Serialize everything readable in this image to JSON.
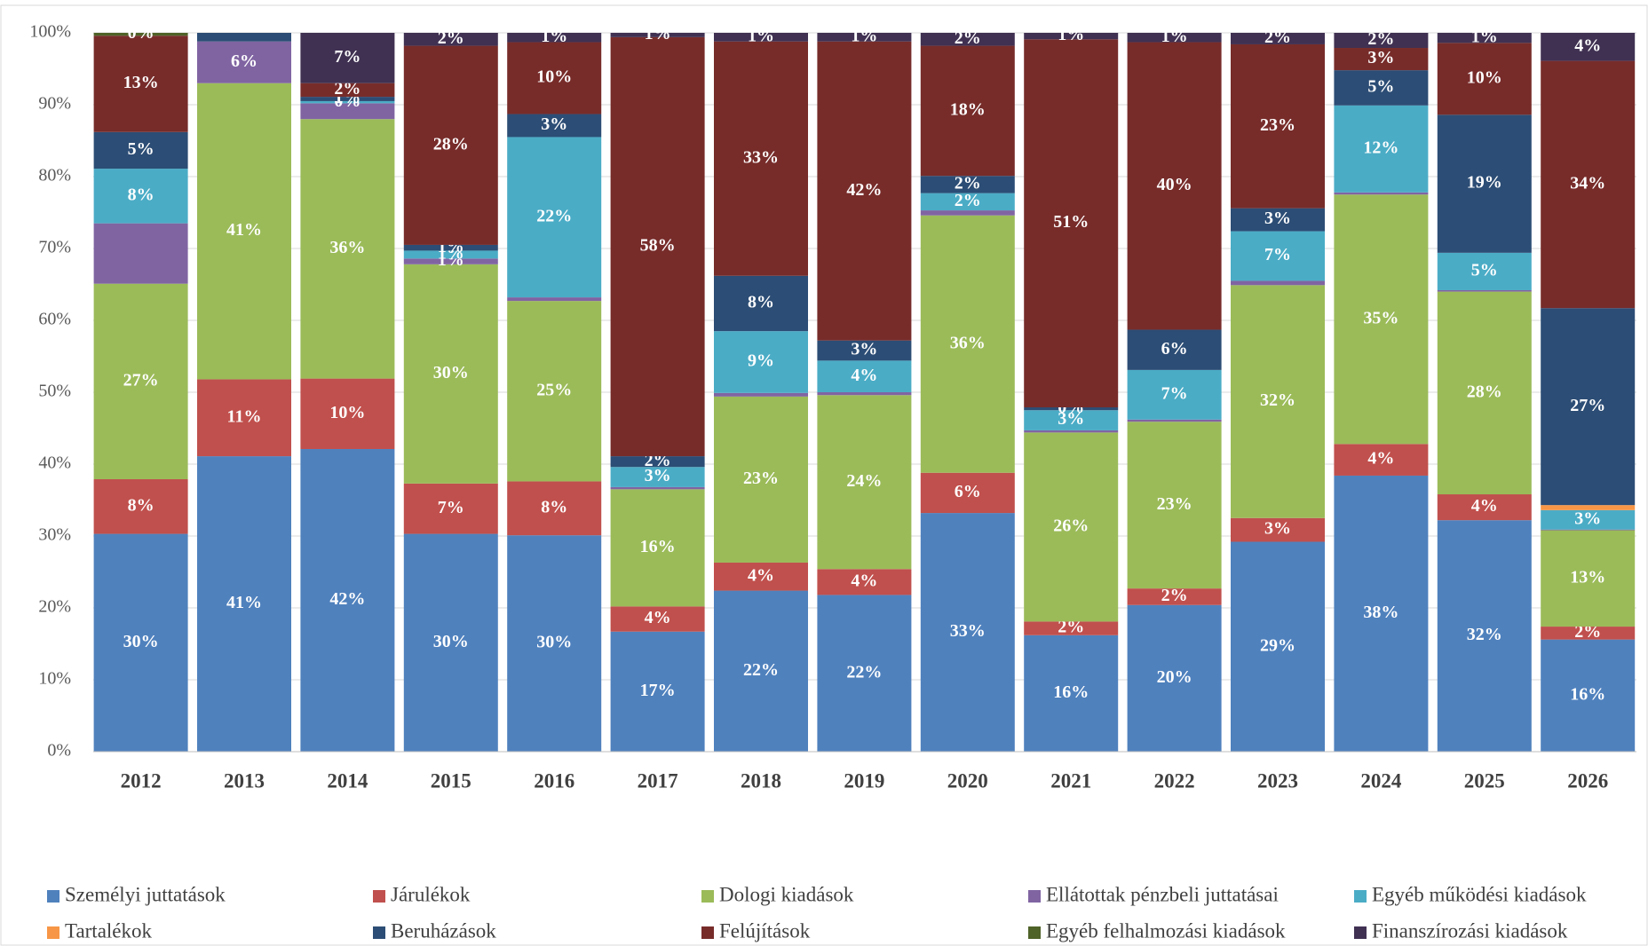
{
  "chart_data": {
    "type": "stacked_bar",
    "categories": [
      "2012",
      "2013",
      "2014",
      "2015",
      "2016",
      "2017",
      "2018",
      "2019",
      "2020",
      "2021",
      "2022",
      "2023",
      "2024",
      "2025",
      "2026"
    ],
    "ylim": [
      0,
      100
    ],
    "yticks": [
      {
        "value": 0,
        "label": "0%"
      },
      {
        "value": 10,
        "label": "10%"
      },
      {
        "value": 20,
        "label": "20%"
      },
      {
        "value": 30,
        "label": "30%"
      },
      {
        "value": 40,
        "label": "40%"
      },
      {
        "value": 50,
        "label": "50%"
      },
      {
        "value": 60,
        "label": "60%"
      },
      {
        "value": 70,
        "label": "70%"
      },
      {
        "value": 80,
        "label": "80%"
      },
      {
        "value": 90,
        "label": "90%"
      },
      {
        "value": 100,
        "label": "100%"
      }
    ],
    "grid": true,
    "series": [
      {
        "name": "Személyi juttatások",
        "color": "#4f81bd",
        "values": [
          30.3,
          41.1,
          42.1,
          30.3,
          30.1,
          16.7,
          22.4,
          21.8,
          33.2,
          16.2,
          20.4,
          29.2,
          38.4,
          32.2,
          15.6
        ],
        "value_labels": [
          "30%",
          "41%",
          "42%",
          "30%",
          "30%",
          "17%",
          "22%",
          "22%",
          "33%",
          "16%",
          "20%",
          "29%",
          "38%",
          "32%",
          "16%"
        ]
      },
      {
        "name": "Járulékok",
        "color": "#c0504d",
        "values": [
          7.6,
          10.7,
          9.8,
          7.0,
          7.5,
          3.5,
          3.9,
          3.6,
          5.6,
          1.9,
          2.3,
          3.3,
          4.4,
          3.6,
          1.8
        ],
        "value_labels": [
          "8%",
          "11%",
          "10%",
          "7%",
          "8%",
          "4%",
          "4%",
          "4%",
          "6%",
          "2%",
          "2%",
          "3%",
          "4%",
          "4%",
          "2%"
        ]
      },
      {
        "name": "Dologi kiadások",
        "color": "#9bbb59",
        "values": [
          27.2,
          41.2,
          36.1,
          30.5,
          25.1,
          16.3,
          23.1,
          24.2,
          35.8,
          26.3,
          23.2,
          32.4,
          34.7,
          28.2,
          13.4
        ],
        "value_labels": [
          "27%",
          "41%",
          "36%",
          "30%",
          "25%",
          "16%",
          "23%",
          "24%",
          "36%",
          "26%",
          "23%",
          "32%",
          "35%",
          "28%",
          "13%"
        ]
      },
      {
        "name": "Ellátottak pénzbeli juttatásai",
        "color": "#8064a2",
        "values": [
          8.4,
          5.8,
          2.2,
          0.8,
          0.5,
          0.3,
          0.5,
          0.4,
          0.7,
          0.3,
          0.3,
          0.6,
          0.3,
          0.2,
          0.1
        ],
        "value_labels": [
          null,
          "6%",
          null,
          "1%",
          null,
          null,
          null,
          null,
          null,
          null,
          null,
          null,
          null,
          null,
          null
        ]
      },
      {
        "name": "Egyéb működési kiadások",
        "color": "#4bacc6",
        "values": [
          7.6,
          0,
          0.3,
          1.1,
          22.3,
          2.8,
          8.6,
          4.4,
          2.4,
          2.8,
          6.9,
          6.9,
          12.1,
          5.2,
          2.7
        ],
        "value_labels": [
          "8%",
          null,
          "0%",
          "1%",
          "22%",
          "3%",
          "9%",
          "4%",
          "2%",
          "3%",
          "7%",
          "7%",
          "12%",
          "5%",
          "3%"
        ]
      },
      {
        "name": "Tartalékok",
        "color": "#f79646",
        "values": [
          0,
          0,
          0,
          0,
          0,
          0,
          0,
          0,
          0,
          0,
          0,
          0,
          0,
          0,
          0.7
        ],
        "value_labels": [
          null,
          null,
          null,
          null,
          null,
          null,
          null,
          null,
          null,
          null,
          null,
          null,
          null,
          null,
          null
        ]
      },
      {
        "name": "Beruházások",
        "color": "#2c4d75",
        "values": [
          5.1,
          1.2,
          0.6,
          0.8,
          3.2,
          1.5,
          7.7,
          2.8,
          2.4,
          0.4,
          5.6,
          3.2,
          4.9,
          19.2,
          27.4
        ],
        "value_labels": [
          "5%",
          null,
          "1%",
          "1%",
          "3%",
          "2%",
          "8%",
          "3%",
          "2%",
          "0%",
          "6%",
          "3%",
          "5%",
          "19%",
          "27%"
        ]
      },
      {
        "name": "Felújítások",
        "color": "#772c2a",
        "values": [
          13.4,
          0,
          1.9,
          27.7,
          10.0,
          58.3,
          32.6,
          41.6,
          18.1,
          51.2,
          40.0,
          22.8,
          3.1,
          10.0,
          34.4
        ],
        "value_labels": [
          "13%",
          null,
          "2%",
          "28%",
          "10%",
          "58%",
          "33%",
          "42%",
          "18%",
          "51%",
          "40%",
          "23%",
          "3%",
          "10%",
          "34%"
        ]
      },
      {
        "name": "Egyéb felhalmozási kiadások",
        "color": "#4f6228",
        "values": [
          0.4,
          0,
          0,
          0,
          0,
          0,
          0,
          0,
          0,
          0,
          0,
          0,
          0,
          0,
          0
        ],
        "value_labels": [
          "0%",
          null,
          null,
          null,
          null,
          null,
          null,
          null,
          null,
          null,
          null,
          null,
          null,
          null,
          null
        ]
      },
      {
        "name": "Finanszírozási kiadások",
        "color": "#403152",
        "values": [
          0,
          0,
          7.0,
          1.8,
          1.3,
          0.6,
          1.2,
          1.2,
          1.8,
          0.9,
          1.3,
          1.6,
          2.1,
          1.4,
          3.9
        ],
        "value_labels": [
          null,
          null,
          "7%",
          "2%",
          "1%",
          "1%",
          "1%",
          "1%",
          "2%",
          "1%",
          "1%",
          "2%",
          "2%",
          "1%",
          "4%"
        ]
      }
    ]
  }
}
